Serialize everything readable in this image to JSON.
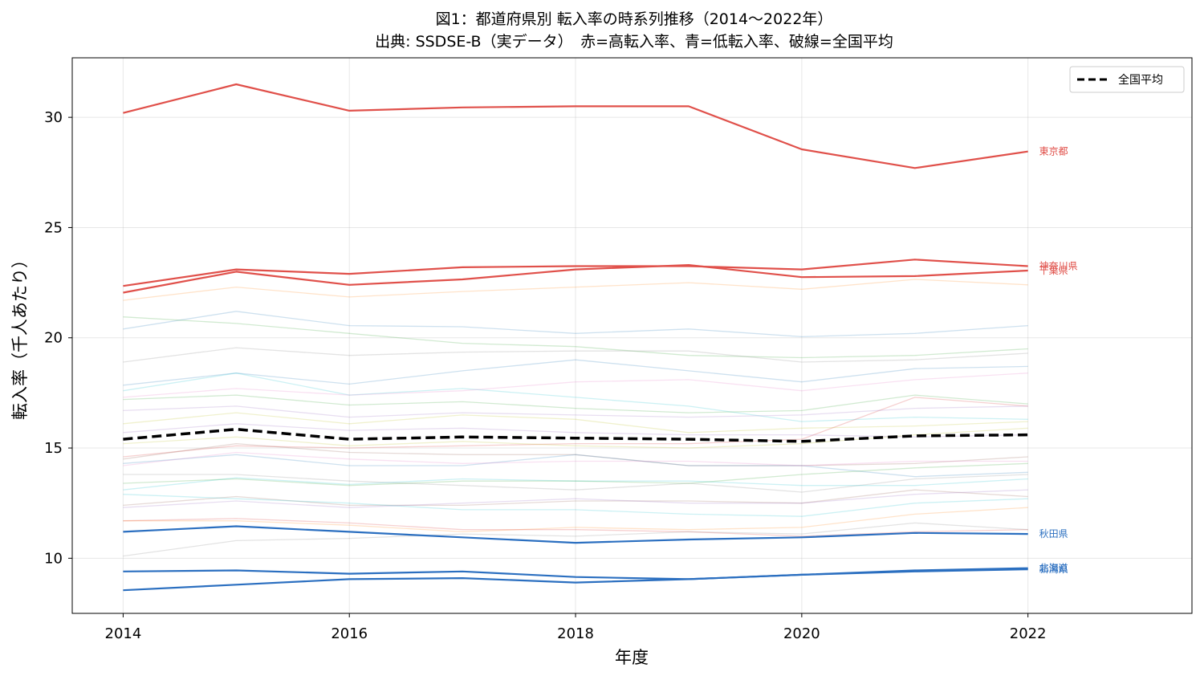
{
  "chart_data": {
    "type": "line",
    "title": "図1：都道府県別 転入率の時系列推移（2014〜2022年）",
    "subtitle": "出典: SSDSE-B（実データ）　赤=高転入率、青=低転入率、破線=全国平均",
    "xlabel": "年度",
    "ylabel": "転入率（千人あたり）",
    "x": [
      2014,
      2015,
      2016,
      2017,
      2018,
      2019,
      2020,
      2021,
      2022
    ],
    "x_ticks": [
      2014,
      2016,
      2018,
      2020,
      2022
    ],
    "y_ticks": [
      10,
      15,
      20,
      25,
      30
    ],
    "xlim": [
      2013.55,
      2023.45
    ],
    "ylim": [
      7.5,
      32.7
    ],
    "grid": true,
    "legend_position": "top-right",
    "colors": {
      "high": "#e0504a",
      "low": "#2b6fc0",
      "average": "#000000"
    },
    "highlight_series": [
      {
        "name": "東京都",
        "group": "high",
        "values": [
          30.2,
          31.5,
          30.3,
          30.45,
          30.5,
          30.5,
          28.55,
          27.7,
          28.45
        ]
      },
      {
        "name": "神奈川県",
        "group": "high",
        "values": [
          22.35,
          23.1,
          22.9,
          23.2,
          23.25,
          23.25,
          23.1,
          23.55,
          23.25
        ]
      },
      {
        "name": "千葉県",
        "group": "high",
        "values": [
          22.05,
          23.0,
          22.4,
          22.65,
          23.1,
          23.3,
          22.75,
          22.8,
          23.05
        ]
      },
      {
        "name": "秋田県",
        "group": "low",
        "values": [
          11.2,
          11.45,
          11.2,
          10.95,
          10.7,
          10.85,
          10.95,
          11.15,
          11.1
        ]
      },
      {
        "name": "新潟県",
        "group": "low",
        "values": [
          9.4,
          9.45,
          9.3,
          9.4,
          9.15,
          9.05,
          9.25,
          9.4,
          9.5
        ]
      },
      {
        "name": "北海道",
        "group": "low",
        "values": [
          8.55,
          8.8,
          9.05,
          9.1,
          8.9,
          9.05,
          9.25,
          9.45,
          9.55
        ]
      }
    ],
    "average_series": {
      "name": "全国平均",
      "values": [
        15.4,
        15.85,
        15.4,
        15.5,
        15.45,
        15.4,
        15.3,
        15.55,
        15.6
      ]
    },
    "background_series": [
      {
        "color": "#ff7f0e",
        "values": [
          21.7,
          22.3,
          21.85,
          22.1,
          22.3,
          22.5,
          22.2,
          22.65,
          22.4
        ]
      },
      {
        "color": "#1f77b4",
        "values": [
          20.4,
          21.2,
          20.55,
          20.5,
          20.2,
          20.4,
          20.05,
          20.2,
          20.55
        ]
      },
      {
        "color": "#2ca02c",
        "values": [
          20.95,
          20.65,
          20.2,
          19.75,
          19.6,
          19.2,
          19.1,
          19.2,
          19.5
        ]
      },
      {
        "color": "#7f7f7f",
        "values": [
          18.9,
          19.55,
          19.2,
          19.35,
          19.4,
          19.4,
          18.9,
          19.0,
          19.3
        ]
      },
      {
        "color": "#1f77b4",
        "values": [
          17.85,
          18.4,
          17.9,
          18.5,
          19.0,
          18.5,
          18.0,
          18.6,
          18.7
        ]
      },
      {
        "color": "#17becf",
        "values": [
          17.6,
          18.4,
          17.4,
          17.7,
          17.3,
          16.9,
          16.2,
          16.4,
          16.3
        ]
      },
      {
        "color": "#e377c2",
        "values": [
          17.3,
          17.7,
          17.4,
          17.6,
          18.0,
          18.1,
          17.6,
          18.1,
          18.4
        ]
      },
      {
        "color": "#2ca02c",
        "values": [
          17.2,
          17.4,
          16.95,
          17.1,
          16.8,
          16.6,
          16.7,
          17.4,
          17.0
        ]
      },
      {
        "color": "#bcbd22",
        "values": [
          16.1,
          16.6,
          16.1,
          16.5,
          16.3,
          15.7,
          15.9,
          16.0,
          16.2
        ]
      },
      {
        "color": "#d62728",
        "values": [
          14.6,
          15.1,
          15.0,
          15.1,
          15.2,
          15.2,
          15.4,
          17.3,
          16.9
        ]
      },
      {
        "color": "#9467bd",
        "values": [
          15.7,
          16.1,
          15.8,
          15.9,
          15.7,
          15.6,
          15.6,
          15.5,
          15.6
        ]
      },
      {
        "color": "#8c564b",
        "values": [
          14.5,
          15.2,
          14.8,
          14.7,
          14.7,
          14.2,
          14.2,
          14.3,
          14.6
        ]
      },
      {
        "color": "#1f77b4",
        "values": [
          14.3,
          14.7,
          14.2,
          14.2,
          14.7,
          14.2,
          14.2,
          13.7,
          13.9
        ]
      },
      {
        "color": "#7f7f7f",
        "values": [
          13.8,
          13.8,
          13.5,
          13.3,
          13.1,
          13.4,
          13.0,
          13.6,
          13.8
        ]
      },
      {
        "color": "#17becf",
        "values": [
          13.1,
          13.65,
          13.35,
          13.6,
          13.5,
          13.5,
          13.3,
          13.3,
          13.6
        ]
      },
      {
        "color": "#2ca02c",
        "values": [
          13.4,
          13.6,
          13.3,
          13.5,
          13.5,
          13.4,
          13.8,
          14.1,
          14.3
        ]
      },
      {
        "color": "#8c564b",
        "values": [
          12.4,
          12.8,
          12.4,
          12.4,
          12.6,
          12.6,
          12.5,
          13.1,
          12.8
        ]
      },
      {
        "color": "#9467bd",
        "values": [
          12.3,
          12.6,
          12.3,
          12.5,
          12.7,
          12.5,
          12.5,
          12.9,
          13.1
        ]
      },
      {
        "color": "#ff7f0e",
        "values": [
          11.7,
          11.7,
          11.5,
          11.2,
          11.4,
          11.3,
          11.4,
          12.0,
          12.3
        ]
      },
      {
        "color": "#d62728",
        "values": [
          11.7,
          11.8,
          11.6,
          11.3,
          11.3,
          11.2,
          11.0,
          11.2,
          11.3
        ]
      },
      {
        "color": "#7f7f7f",
        "values": [
          10.1,
          10.8,
          10.9,
          11.1,
          11.0,
          11.2,
          11.1,
          11.6,
          11.3
        ]
      },
      {
        "color": "#bcbd22",
        "values": [
          15.2,
          15.5,
          15.1,
          15.3,
          15.1,
          15.0,
          15.2,
          15.6,
          15.9
        ]
      },
      {
        "color": "#e377c2",
        "values": [
          14.2,
          14.8,
          14.5,
          14.3,
          14.4,
          14.4,
          14.2,
          14.4,
          14.4
        ]
      },
      {
        "color": "#17becf",
        "values": [
          12.9,
          12.7,
          12.5,
          12.2,
          12.2,
          12.0,
          11.9,
          12.5,
          12.7
        ]
      },
      {
        "color": "#9467bd",
        "values": [
          16.7,
          16.9,
          16.4,
          16.6,
          16.5,
          16.4,
          16.5,
          16.8,
          16.9
        ]
      }
    ]
  }
}
